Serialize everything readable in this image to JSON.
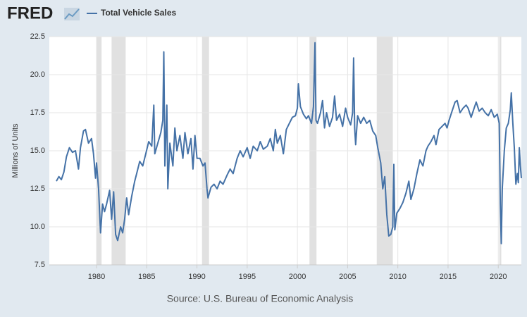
{
  "logo": "FRED",
  "chart_data": {
    "type": "line",
    "legend": "Total Vehicle Sales",
    "y_label": "Millions of Units",
    "source": "Source: U.S. Bureau of Economic Analysis",
    "xlim": [
      1976,
      2022.3
    ],
    "xticks": [
      1980,
      1985,
      1990,
      1995,
      2000,
      2005,
      2010,
      2015,
      2020
    ],
    "ylim": [
      7.5,
      22.5
    ],
    "yticks": [
      7.5,
      {
        "value": 10,
        "label": "10.0"
      },
      12.5,
      {
        "value": 15,
        "label": "15.0"
      },
      17.5,
      {
        "value": 20,
        "label": "20.0"
      },
      22.5
    ],
    "grid": true,
    "recessions": [
      [
        1980.0,
        1980.5
      ],
      [
        1981.5,
        1982.9
      ],
      [
        1990.5,
        1991.2
      ],
      [
        2001.2,
        2001.9
      ],
      [
        2007.9,
        2009.5
      ],
      [
        2020.1,
        2020.3
      ]
    ],
    "series": [
      {
        "name": "Total Vehicle Sales",
        "color": "#4572a7",
        "x": [
          1976.0,
          1976.25,
          1976.5,
          1976.75,
          1977.0,
          1977.3,
          1977.6,
          1977.9,
          1978.2,
          1978.4,
          1978.7,
          1978.9,
          1979.2,
          1979.5,
          1979.7,
          1979.9,
          1980.0,
          1980.2,
          1980.4,
          1980.6,
          1980.8,
          1981.0,
          1981.3,
          1981.5,
          1981.7,
          1981.9,
          1982.1,
          1982.4,
          1982.6,
          1982.8,
          1983.0,
          1983.2,
          1983.5,
          1983.8,
          1984.0,
          1984.3,
          1984.6,
          1984.9,
          1985.2,
          1985.5,
          1985.7,
          1985.8,
          1986.1,
          1986.4,
          1986.6,
          1986.7,
          1986.8,
          1987.0,
          1987.1,
          1987.3,
          1987.6,
          1987.8,
          1988.0,
          1988.3,
          1988.6,
          1988.8,
          1989.1,
          1989.4,
          1989.6,
          1989.8,
          1990.0,
          1990.3,
          1990.6,
          1990.8,
          1991.0,
          1991.1,
          1991.4,
          1991.7,
          1992.0,
          1992.3,
          1992.6,
          1993.0,
          1993.3,
          1993.6,
          1994.0,
          1994.3,
          1994.6,
          1995.0,
          1995.3,
          1995.6,
          1996.0,
          1996.3,
          1996.6,
          1997.0,
          1997.3,
          1997.6,
          1997.8,
          1998.0,
          1998.3,
          1998.6,
          1998.9,
          1999.2,
          1999.5,
          1999.8,
          2000.0,
          2000.1,
          2000.3,
          2000.6,
          2000.9,
          2001.1,
          2001.4,
          2001.6,
          2001.75,
          2001.85,
          2002.0,
          2002.3,
          2002.5,
          2002.7,
          2002.9,
          2003.2,
          2003.5,
          2003.7,
          2003.9,
          2004.2,
          2004.5,
          2004.8,
          2005.0,
          2005.3,
          2005.5,
          2005.6,
          2005.7,
          2005.8,
          2006.0,
          2006.3,
          2006.6,
          2006.9,
          2007.2,
          2007.5,
          2007.8,
          2008.0,
          2008.3,
          2008.5,
          2008.7,
          2008.9,
          2009.1,
          2009.3,
          2009.5,
          2009.6,
          2009.7,
          2009.9,
          2010.2,
          2010.5,
          2010.8,
          2011.1,
          2011.3,
          2011.6,
          2011.9,
          2012.2,
          2012.5,
          2012.8,
          2013.0,
          2013.3,
          2013.6,
          2013.8,
          2014.1,
          2014.4,
          2014.7,
          2014.9,
          2015.1,
          2015.4,
          2015.7,
          2015.9,
          2016.2,
          2016.5,
          2016.8,
          2017.0,
          2017.3,
          2017.6,
          2017.8,
          2018.1,
          2018.4,
          2018.7,
          2019.0,
          2019.3,
          2019.6,
          2019.9,
          2020.1,
          2020.2,
          2020.3,
          2020.4,
          2020.6,
          2020.8,
          2021.0,
          2021.2,
          2021.3,
          2021.45,
          2021.6,
          2021.75,
          2021.9,
          2022.0,
          2022.1,
          2022.2,
          2022.3
        ],
        "values": [
          13.0,
          13.3,
          13.1,
          13.6,
          14.6,
          15.2,
          14.9,
          15.0,
          13.8,
          15.2,
          16.3,
          16.4,
          15.5,
          15.8,
          14.8,
          13.2,
          14.2,
          12.5,
          9.6,
          11.5,
          11.0,
          11.5,
          12.4,
          10.5,
          12.3,
          9.5,
          9.1,
          10.0,
          9.6,
          10.5,
          11.9,
          10.8,
          12.0,
          13.0,
          13.5,
          14.3,
          14.0,
          14.8,
          15.6,
          15.3,
          18.0,
          14.8,
          15.5,
          16.2,
          17.0,
          21.5,
          14.0,
          18.0,
          12.5,
          15.5,
          14.0,
          16.5,
          15.0,
          16.0,
          14.5,
          16.2,
          14.8,
          15.8,
          13.8,
          16.0,
          14.5,
          14.5,
          14.0,
          14.2,
          12.5,
          11.9,
          12.6,
          12.8,
          12.5,
          13.0,
          12.8,
          13.4,
          13.8,
          13.5,
          14.5,
          15.0,
          14.6,
          15.2,
          14.5,
          15.3,
          15.0,
          15.6,
          15.1,
          15.3,
          15.8,
          15.0,
          16.4,
          15.5,
          16.0,
          14.8,
          16.4,
          16.8,
          17.2,
          17.3,
          17.8,
          19.4,
          17.9,
          17.4,
          17.1,
          17.3,
          16.8,
          17.9,
          22.1,
          17.0,
          16.8,
          17.5,
          18.3,
          16.5,
          17.5,
          16.6,
          17.2,
          18.6,
          17.0,
          17.4,
          16.6,
          17.8,
          17.2,
          16.7,
          17.5,
          21.1,
          16.5,
          15.4,
          17.3,
          16.8,
          17.2,
          16.8,
          17.0,
          16.3,
          16.0,
          15.2,
          14.2,
          12.5,
          13.3,
          10.8,
          9.4,
          9.5,
          10.0,
          14.1,
          9.8,
          10.9,
          11.2,
          11.6,
          12.2,
          13.0,
          11.8,
          12.5,
          13.5,
          14.4,
          14.0,
          15.0,
          15.3,
          15.6,
          16.0,
          15.4,
          16.4,
          16.6,
          16.8,
          16.5,
          17.0,
          17.6,
          18.2,
          18.3,
          17.5,
          17.8,
          18.0,
          17.8,
          17.2,
          17.8,
          18.2,
          17.6,
          17.8,
          17.5,
          17.3,
          17.7,
          17.2,
          17.4,
          16.8,
          11.5,
          8.9,
          12.5,
          15.0,
          16.5,
          16.8,
          17.7,
          18.8,
          16.8,
          15.2,
          12.8,
          13.5,
          12.9,
          15.2,
          14.0,
          13.2
        ]
      }
    ]
  }
}
